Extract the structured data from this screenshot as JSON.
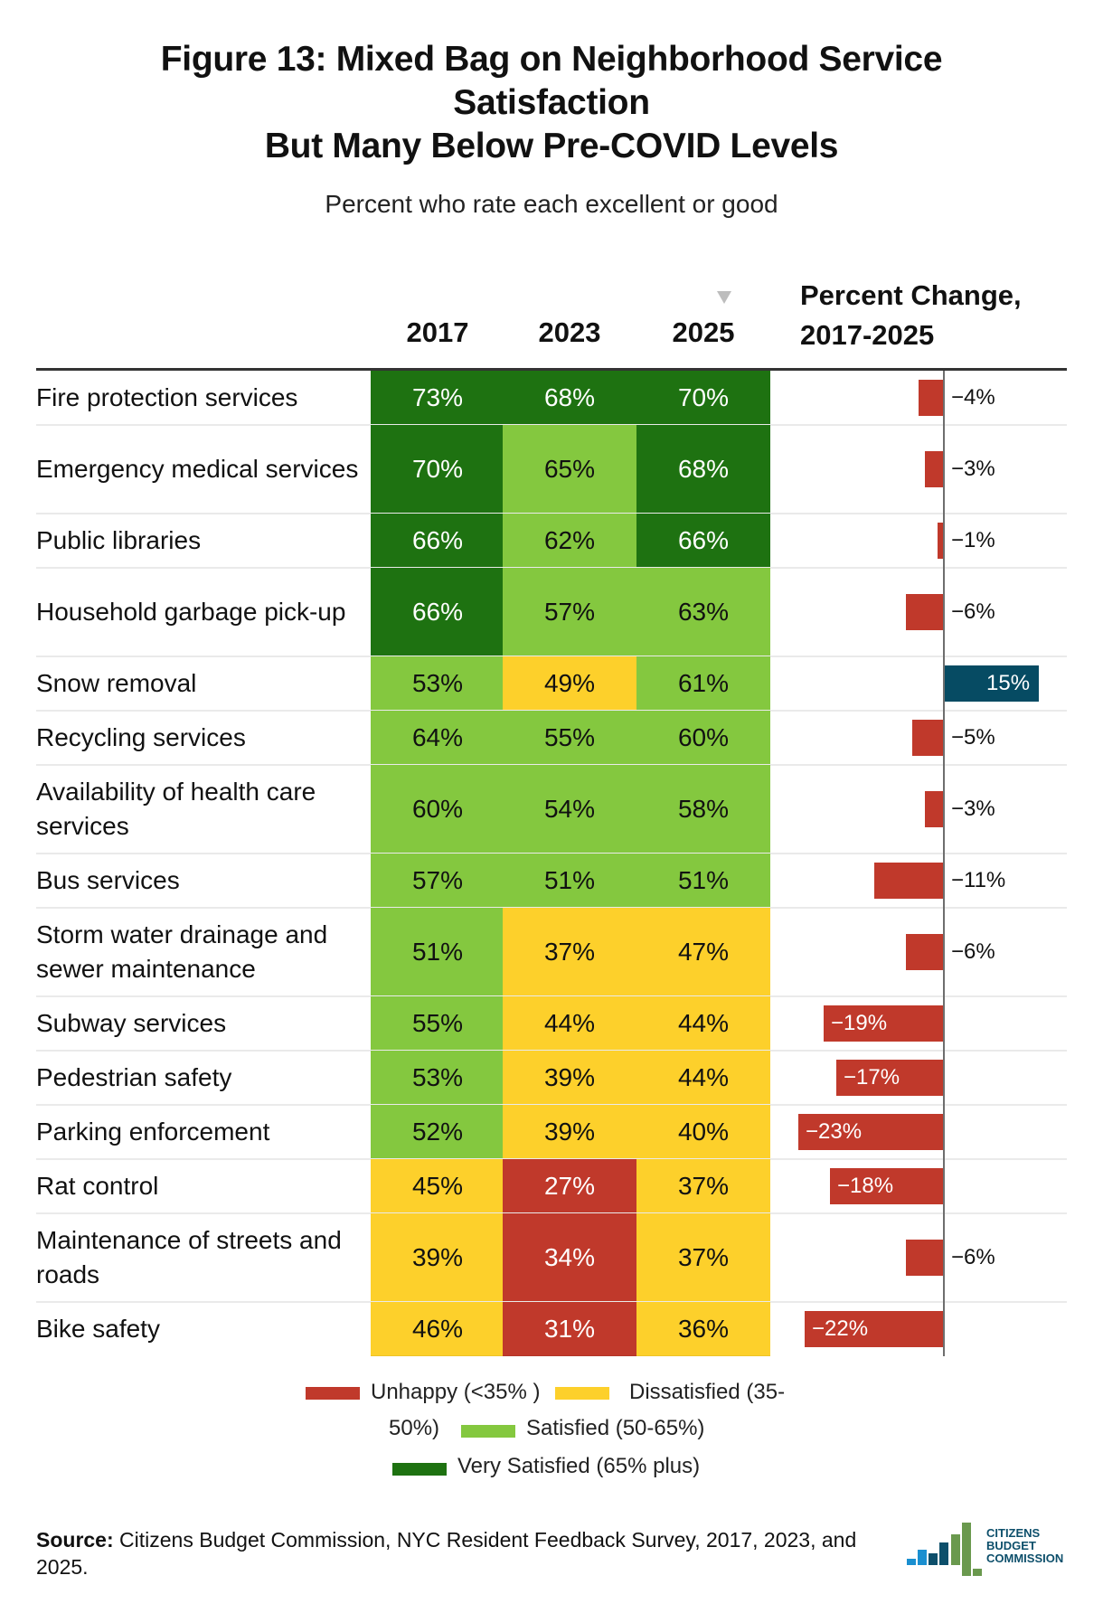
{
  "title_lines": [
    "Figure 13: Mixed Bag on Neighborhood Service",
    "Satisfaction",
    "But Many Below Pre-COVID Levels"
  ],
  "subtitle": "Percent who rate each excellent or good",
  "columns": {
    "y2017": "2017",
    "y2023": "2023",
    "y2025": "2025",
    "pct_change_line1": "Percent Change,",
    "pct_change_line2": "2017-2025",
    "sort_indicator": "sort-descending-icon"
  },
  "colors": {
    "unhappy": "#c0392b",
    "dissatisfied": "#fdd02b",
    "satisfied": "#84c83f",
    "very_satisfied": "#1e7211",
    "negative_change": "#c0392b",
    "positive_change": "#064b63"
  },
  "legend": {
    "unhappy": "Unhappy (<35% )",
    "dissatisfied_a": "Dissatisfied (35-",
    "dissatisfied_b": "50%)",
    "satisfied": "Satisfied (50-65%)",
    "very_satisfied": "Very Satisfied (65% plus)"
  },
  "source": {
    "label": "Source:",
    "text": " Citizens Budget Commission, NYC Resident Feedback Survey, 2017, 2023, and 2025."
  },
  "logo": {
    "line1": "CITIZENS",
    "line2": "BUDGET",
    "line3": "COMMISSION"
  },
  "chart_data": {
    "type": "table",
    "title": "Figure 13: Mixed Bag on Neighborhood Service Satisfaction But Many Below Pre-COVID Levels",
    "subtitle": "Percent who rate each excellent or good",
    "columns": [
      "2017",
      "2023",
      "2025",
      "Percent Change, 2017-2025"
    ],
    "color_scale": [
      {
        "name": "Unhappy",
        "range": "<35%",
        "key": "unhappy"
      },
      {
        "name": "Dissatisfied",
        "range": "35-50%",
        "key": "dissatisfied"
      },
      {
        "name": "Satisfied",
        "range": "50-65%",
        "key": "satisfied"
      },
      {
        "name": "Very Satisfied",
        "range": "65% plus",
        "key": "very_satisfied"
      }
    ],
    "change_bar_range": [
      -25,
      15
    ],
    "rows": [
      {
        "service": "Fire protection services",
        "lines": 1,
        "v2017": 73,
        "v2023": 68,
        "v2025": 70,
        "change": -4,
        "c2017": "very_satisfied",
        "c2023": "very_satisfied",
        "c2025": "very_satisfied"
      },
      {
        "service": "Emergency medical services",
        "lines": 2,
        "v2017": 70,
        "v2023": 65,
        "v2025": 68,
        "change": -3,
        "c2017": "very_satisfied",
        "c2023": "satisfied",
        "c2025": "very_satisfied"
      },
      {
        "service": "Public libraries",
        "lines": 1,
        "v2017": 66,
        "v2023": 62,
        "v2025": 66,
        "change": -1,
        "c2017": "very_satisfied",
        "c2023": "satisfied",
        "c2025": "very_satisfied"
      },
      {
        "service": "Household garbage pick-up",
        "lines": 2,
        "v2017": 66,
        "v2023": 57,
        "v2025": 63,
        "change": -6,
        "c2017": "very_satisfied",
        "c2023": "satisfied",
        "c2025": "satisfied"
      },
      {
        "service": "Snow removal",
        "lines": 1,
        "v2017": 53,
        "v2023": 49,
        "v2025": 61,
        "change": 15,
        "c2017": "satisfied",
        "c2023": "dissatisfied",
        "c2025": "satisfied"
      },
      {
        "service": "Recycling services",
        "lines": 1,
        "v2017": 64,
        "v2023": 55,
        "v2025": 60,
        "change": -5,
        "c2017": "satisfied",
        "c2023": "satisfied",
        "c2025": "satisfied"
      },
      {
        "service": "Availability of health care services",
        "lines": 2,
        "v2017": 60,
        "v2023": 54,
        "v2025": 58,
        "change": -3,
        "c2017": "satisfied",
        "c2023": "satisfied",
        "c2025": "satisfied"
      },
      {
        "service": "Bus services",
        "lines": 1,
        "v2017": 57,
        "v2023": 51,
        "v2025": 51,
        "change": -11,
        "c2017": "satisfied",
        "c2023": "satisfied",
        "c2025": "satisfied"
      },
      {
        "service": "Storm water drainage and sewer maintenance",
        "lines": 2,
        "v2017": 51,
        "v2023": 37,
        "v2025": 47,
        "change": -6,
        "c2017": "satisfied",
        "c2023": "dissatisfied",
        "c2025": "dissatisfied"
      },
      {
        "service": "Subway services",
        "lines": 1,
        "v2017": 55,
        "v2023": 44,
        "v2025": 44,
        "change": -19,
        "c2017": "satisfied",
        "c2023": "dissatisfied",
        "c2025": "dissatisfied"
      },
      {
        "service": "Pedestrian safety",
        "lines": 1,
        "v2017": 53,
        "v2023": 39,
        "v2025": 44,
        "change": -17,
        "c2017": "satisfied",
        "c2023": "dissatisfied",
        "c2025": "dissatisfied"
      },
      {
        "service": "Parking enforcement",
        "lines": 1,
        "v2017": 52,
        "v2023": 39,
        "v2025": 40,
        "change": -23,
        "c2017": "satisfied",
        "c2023": "dissatisfied",
        "c2025": "dissatisfied"
      },
      {
        "service": "Rat control",
        "lines": 1,
        "v2017": 45,
        "v2023": 27,
        "v2025": 37,
        "change": -18,
        "c2017": "dissatisfied",
        "c2023": "unhappy",
        "c2025": "dissatisfied"
      },
      {
        "service": "Maintenance of streets and roads",
        "lines": 2,
        "v2017": 39,
        "v2023": 34,
        "v2025": 37,
        "change": -6,
        "c2017": "dissatisfied",
        "c2023": "unhappy",
        "c2025": "dissatisfied"
      },
      {
        "service": "Bike safety",
        "lines": 1,
        "v2017": 46,
        "v2023": 31,
        "v2025": 36,
        "change": -22,
        "c2017": "dissatisfied",
        "c2023": "unhappy",
        "c2025": "dissatisfied"
      }
    ]
  }
}
